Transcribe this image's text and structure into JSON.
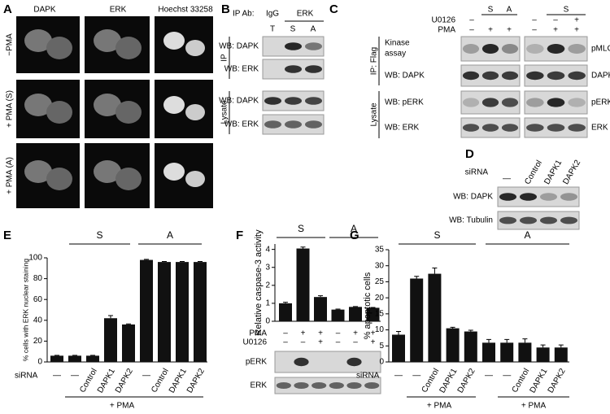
{
  "panels": {
    "A": {
      "label": "A",
      "columns": [
        "DAPK",
        "ERK",
        "Hoechst 33258"
      ],
      "rows": [
        "−PMA",
        "+ PMA (S)",
        "+ PMA (A)"
      ]
    },
    "B": {
      "label": "B",
      "ip_ab": "IP Ab:",
      "igg": "IgG",
      "erk": "ERK",
      "lanes": [
        "T",
        "S",
        "A"
      ],
      "blots": [
        "WB: DAPK",
        "WB: ERK",
        "WB: DAPK",
        "WB: ERK"
      ],
      "sections": [
        "IP",
        "Lysate"
      ]
    },
    "C": {
      "label": "C",
      "groups": [
        "S",
        "A",
        "S"
      ],
      "treatments": [
        "U0126",
        "PMA"
      ],
      "left_u0126": [
        "–"
      ],
      "left_pma": [
        "–",
        "+",
        "+"
      ],
      "right_u0126": [
        "–",
        "–",
        "+"
      ],
      "right_pma": [
        "–",
        "+",
        "+"
      ],
      "blots": [
        "Kinase",
        "assay",
        "WB: DAPK",
        "WB: pERK",
        "WB: ERK"
      ],
      "right": [
        "pMLC",
        "DAPK",
        "pERK",
        "ERK"
      ],
      "sections": [
        "IP: Flag",
        "Lysate"
      ]
    },
    "D": {
      "label": "D",
      "sirna": "siRNA",
      "lanes": [
        "—",
        "Control",
        "DAPK1",
        "DAPK2"
      ],
      "blots": [
        "WB: DAPK",
        "WB: Tubulin"
      ]
    }
  },
  "chart_data": [
    {
      "type": "bar",
      "panel": "E",
      "ylabel": "% cells with ERK nuclear staining",
      "groups": [
        "S",
        "A"
      ],
      "row_label": "siRNA",
      "footer": [
        "+ PMA"
      ],
      "categories": [
        "—",
        "—",
        "Control",
        "DAPK1",
        "DAPK2",
        "—",
        "Control",
        "DAPK1",
        "DAPK2"
      ],
      "values": [
        6,
        6,
        6,
        42,
        36,
        98,
        96,
        96,
        96
      ],
      "errors": [
        0.3,
        0.3,
        0.3,
        2.5,
        0.5,
        0.5,
        0.5,
        0.5,
        0.5
      ],
      "color": "#111111",
      "ylim": [
        0,
        100
      ],
      "yticks": [
        0,
        20,
        40,
        60,
        80,
        100
      ]
    },
    {
      "type": "bar",
      "panel": "F",
      "ylabel": "Relative caspase-3 activity",
      "groups": [
        "S",
        "A"
      ],
      "rows": [
        {
          "name": "PMA",
          "values": [
            "–",
            "+",
            "+",
            "–",
            "+",
            "+"
          ]
        },
        {
          "name": "U0126",
          "values": [
            "–",
            "–",
            "+",
            "–",
            "–",
            "+"
          ]
        }
      ],
      "blots": [
        "pERK",
        "ERK"
      ],
      "values": [
        1.0,
        4.05,
        1.35,
        0.65,
        0.8,
        0.75
      ],
      "errors": [
        0.06,
        0.08,
        0.07,
        0.03,
        0.02,
        0.02
      ],
      "color": "#111111",
      "ylim": [
        0,
        4.3
      ],
      "yticks": [
        0,
        1,
        2,
        3,
        4
      ]
    },
    {
      "type": "bar",
      "panel": "G",
      "ylabel": "% apoptotic cells",
      "groups": [
        "S",
        "A"
      ],
      "row_label": "siRNA",
      "footer": [
        "+ PMA",
        "+ PMA"
      ],
      "categories": [
        "—",
        "—",
        "Control",
        "DAPK1",
        "DAPK2",
        "—",
        "—",
        "Control",
        "DAPK1",
        "DAPK2"
      ],
      "values": [
        8.5,
        26,
        27.5,
        10.5,
        9.5,
        6,
        6,
        6,
        4.5,
        4.5
      ],
      "errors": [
        1,
        0.7,
        1.8,
        0.3,
        0.4,
        1,
        1,
        1.2,
        0.8,
        0.8
      ],
      "color": "#111111",
      "ylim": [
        0,
        35
      ],
      "yticks": [
        0,
        5,
        10,
        15,
        20,
        25,
        30,
        35
      ]
    }
  ]
}
